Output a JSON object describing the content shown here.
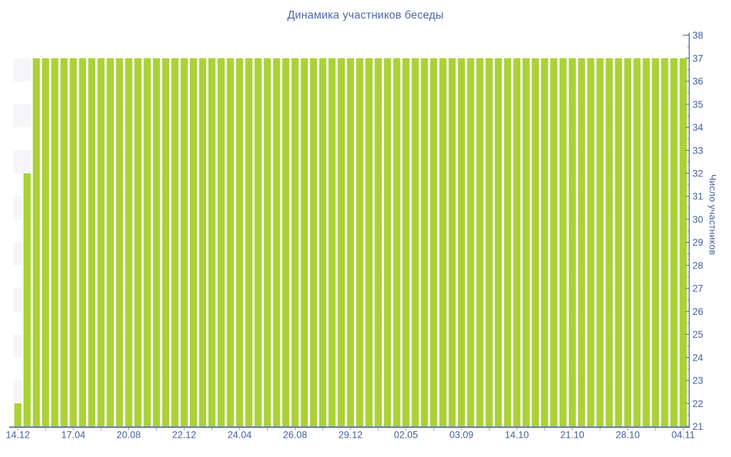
{
  "chart_data": {
    "type": "bar",
    "title": "Динамика участников беседы",
    "ylabel": "Число участников",
    "xlabel": "",
    "ylim": [
      21,
      38
    ],
    "y_axis_side": "right",
    "y_major_tick_step": 1,
    "y_minor_tick_step": 0.5,
    "y_tick_labels": [
      "21",
      "22",
      "23",
      "24",
      "25",
      "26",
      "27",
      "28",
      "29",
      "30",
      "31",
      "32",
      "33",
      "34",
      "35",
      "36",
      "37",
      "38"
    ],
    "x_tick_labels": [
      "14.12",
      "17.04",
      "20.08",
      "22.12",
      "24.04",
      "26.08",
      "29.12",
      "02.05",
      "03.09",
      "14.10",
      "21.10",
      "28.10",
      "04.11"
    ],
    "x_label_every_n_bars": 6,
    "x_minor_tick_every_n_bars": 3,
    "bar_count": 73,
    "values": [
      22,
      32,
      37,
      37,
      37,
      37,
      37,
      37,
      37,
      37,
      37,
      37,
      37,
      37,
      37,
      37,
      37,
      37,
      37,
      37,
      37,
      37,
      37,
      37,
      37,
      37,
      37,
      37,
      37,
      37,
      37,
      37,
      37,
      37,
      37,
      37,
      37,
      37,
      37,
      37,
      37,
      37,
      37,
      37,
      37,
      37,
      37,
      37,
      37,
      37,
      37,
      37,
      37,
      37,
      37,
      37,
      37,
      37,
      37,
      37,
      37,
      37,
      37,
      37,
      37,
      37,
      37,
      37,
      37,
      37,
      37,
      37,
      37
    ],
    "grid": "alternating horizontal bands",
    "legend_position": "none",
    "colors": {
      "bar": "#aad237",
      "axis": "#5b6fae",
      "y_tick": "#8794c6",
      "x_tick": "#9e9e9e",
      "text": "#44619e",
      "title": "#4c68a8",
      "stripe": "#f6f6f8",
      "background": "#ffffff"
    }
  }
}
